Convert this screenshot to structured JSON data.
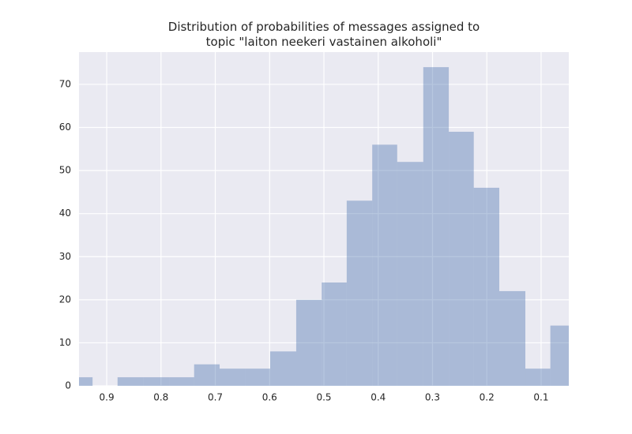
{
  "chart_data": {
    "type": "histogram",
    "title": "Distribution of probabilities of messages assigned to\ntopic \"laiton neekeri vastainen alkoholi\"",
    "bins": [
      0.036,
      0.083,
      0.129,
      0.177,
      0.224,
      0.27,
      0.317,
      0.365,
      0.411,
      0.458,
      0.504,
      0.551,
      0.599,
      0.645,
      0.692,
      0.739,
      0.785,
      0.833,
      0.88,
      0.926,
      0.973
    ],
    "values": [
      14,
      4,
      22,
      46,
      59,
      74,
      52,
      56,
      43,
      24,
      20,
      8,
      4,
      4,
      5,
      2,
      2,
      2,
      0,
      2
    ],
    "color": "#4c72b0",
    "xlim": [
      0.951,
      0.049
    ],
    "xticks": [
      0.9,
      0.8,
      0.7,
      0.6,
      0.5,
      0.4,
      0.3,
      0.2,
      0.1
    ],
    "ylim": [
      0,
      77.5
    ],
    "yticks": [
      0,
      10,
      20,
      30,
      40,
      50,
      60,
      70
    ],
    "grid": true
  }
}
